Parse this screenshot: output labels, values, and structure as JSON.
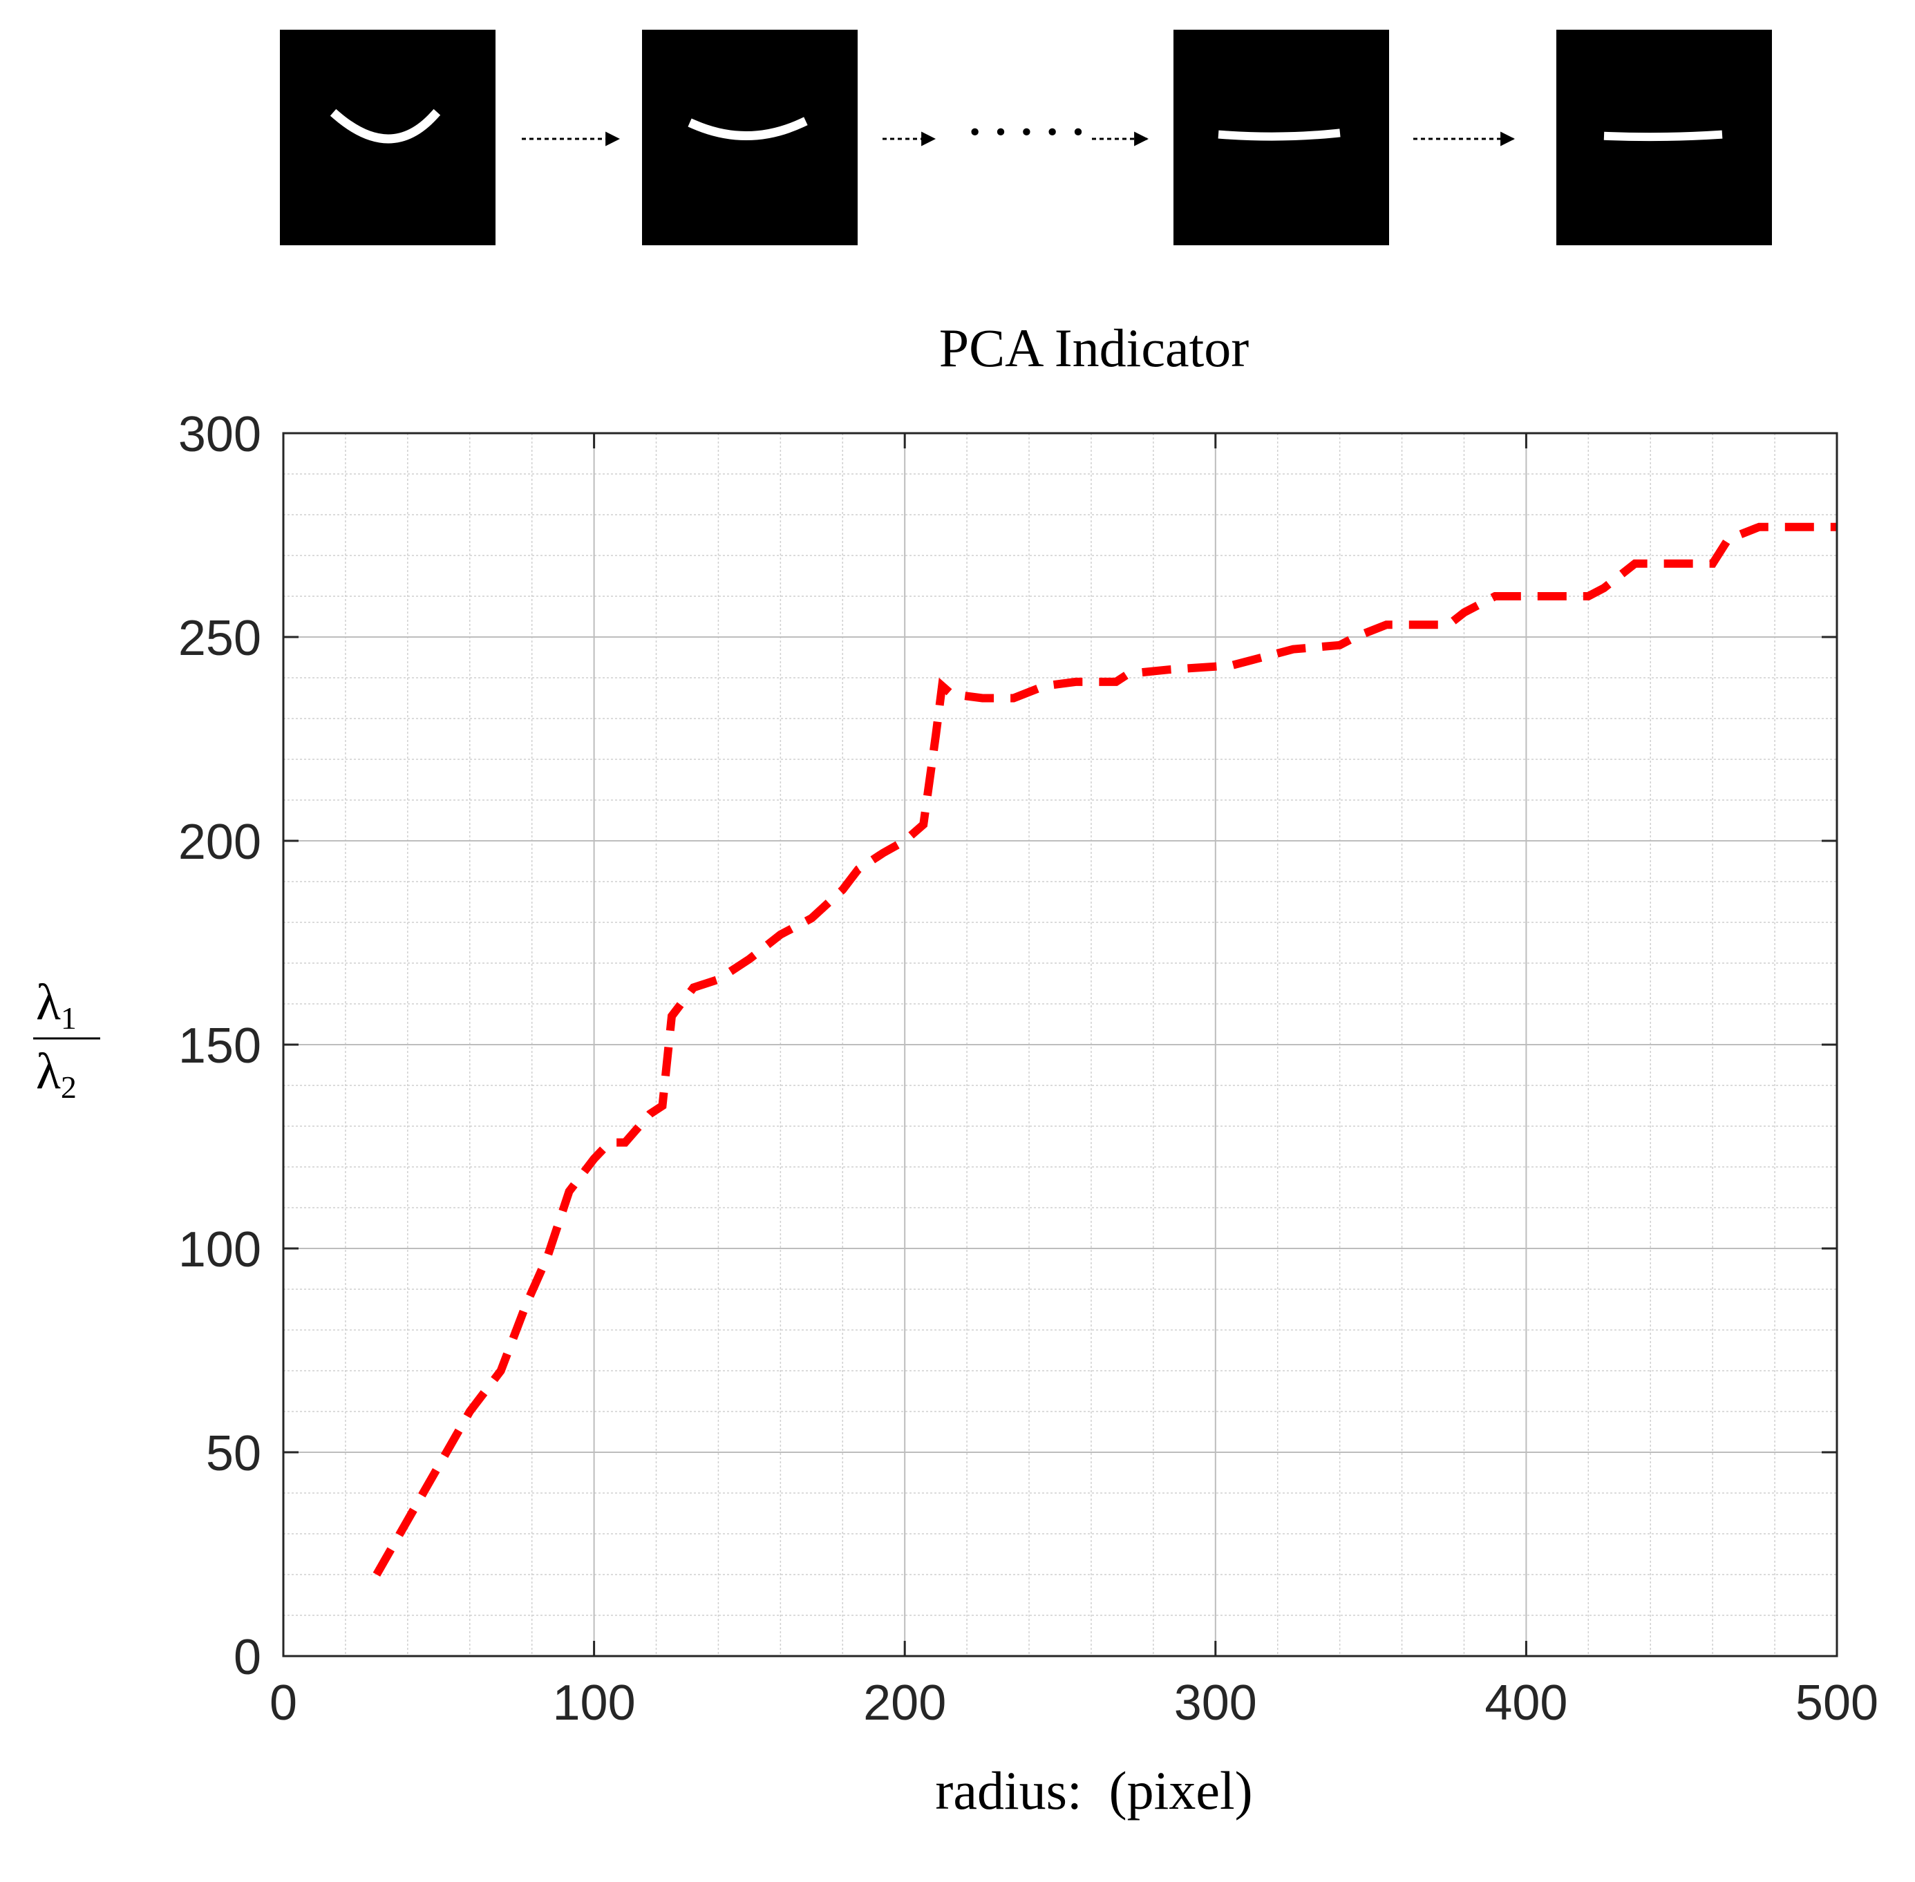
{
  "figure_sequence": {
    "thumbnails": 4,
    "ellipsis": "· · · · ·"
  },
  "chart_data": {
    "type": "line",
    "title": "PCA Indicator",
    "xlabel": "radius:  (pixel)",
    "ylabel": {
      "numerator": "λ",
      "numerator_sub": "1",
      "denominator": "λ",
      "denominator_sub": "2"
    },
    "xlim": [
      0,
      500
    ],
    "ylim": [
      0,
      300
    ],
    "xticks": [
      0,
      100,
      200,
      300,
      400,
      500
    ],
    "yticks": [
      0,
      50,
      100,
      150,
      200,
      250,
      300
    ],
    "grid": true,
    "minor_grid": true,
    "line_style": "dashed",
    "series": [
      {
        "color": "#ff0000",
        "x": [
          30,
          45,
          60,
          70,
          78,
          85,
          92,
          100,
          105,
          110,
          118,
          122,
          125,
          132,
          140,
          150,
          160,
          170,
          180,
          185,
          193,
          200,
          206,
          210,
          212,
          215,
          225,
          235,
          245,
          255,
          268,
          272,
          285,
          305,
          310,
          325,
          340,
          345,
          355,
          375,
          380,
          390,
          420,
          425,
          435,
          445,
          460,
          465,
          475,
          500
        ],
        "y": [
          20,
          40,
          60,
          70,
          86,
          98,
          114,
          122,
          126,
          126,
          133,
          135,
          157,
          164,
          166,
          171,
          177,
          181,
          188,
          193,
          197,
          200,
          204,
          226,
          238,
          236,
          235,
          235,
          238,
          239,
          239,
          241,
          242,
          243,
          244,
          247,
          248,
          250,
          253,
          253,
          256,
          260,
          260,
          262,
          268,
          268,
          268,
          274,
          277,
          277
        ]
      }
    ]
  }
}
